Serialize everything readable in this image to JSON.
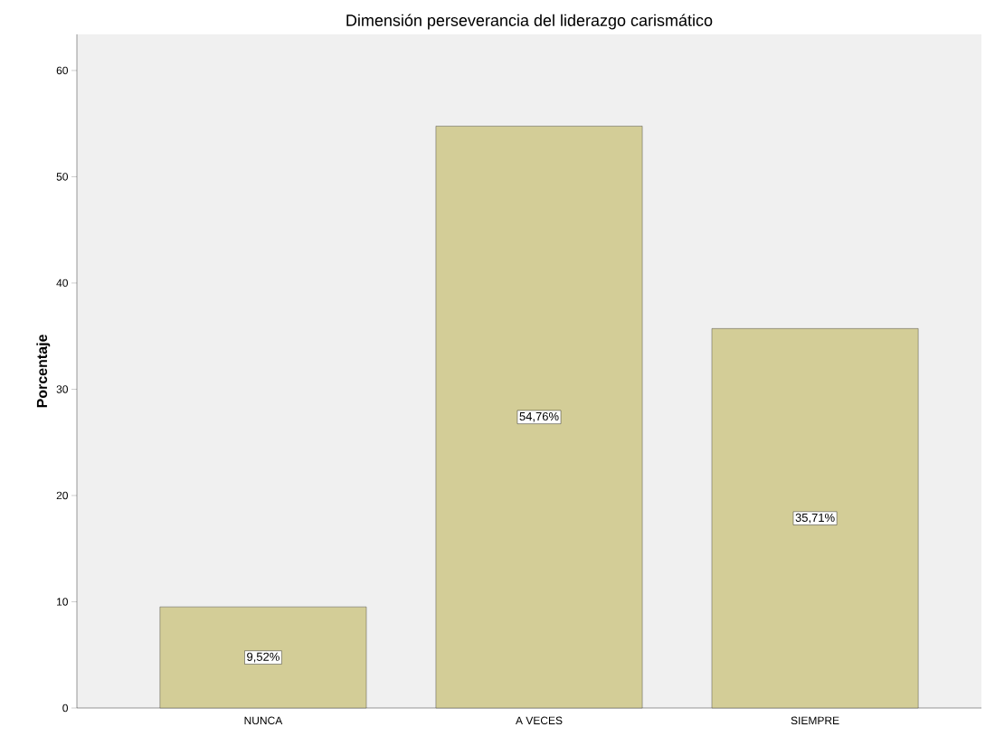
{
  "chart_data": {
    "type": "bar",
    "title": "Dimensión perseverancia del liderazgo carismático",
    "ylabel": "Porcentaje",
    "categories": [
      "NUNCA",
      "A VECES",
      "SIEMPRE"
    ],
    "values": [
      9.52,
      54.76,
      35.71
    ],
    "value_labels": [
      "9,52%",
      "54,76%",
      "35,71%"
    ],
    "color": "#d3cd97",
    "ylim": [
      0,
      63.4
    ],
    "yticks": [
      0,
      10,
      20,
      30,
      40,
      50,
      60
    ],
    "grid": false
  }
}
